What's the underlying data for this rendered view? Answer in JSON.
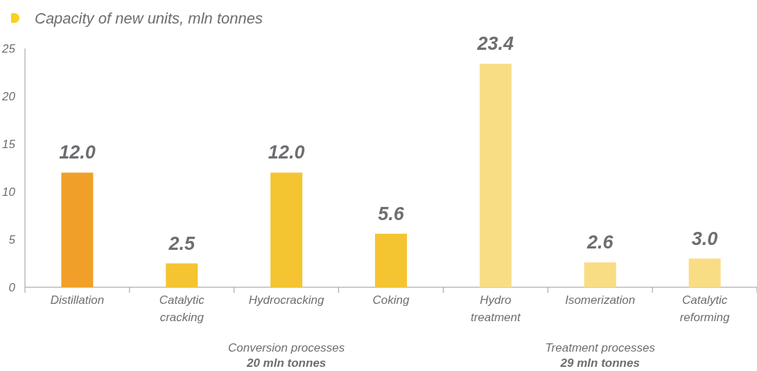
{
  "chart_data": {
    "type": "bar",
    "title": "Capacity of new units, mln tonnes",
    "categories": [
      "Distillation",
      "Catalytic cracking",
      "Hydrocracking",
      "Coking",
      "Hydro treatment",
      "Isomerization",
      "Catalytic reforming"
    ],
    "values": [
      12.0,
      2.5,
      12.0,
      5.6,
      23.4,
      2.6,
      3.0
    ],
    "value_labels": [
      "12.0",
      "2.5",
      "12.0",
      "5.6",
      "23.4",
      "2.6",
      "3.0"
    ],
    "colors": [
      "#f0a028",
      "#f5c431",
      "#f5c431",
      "#f5c431",
      "#f9dd85",
      "#f9dd85",
      "#f9dd85"
    ],
    "ylim": [
      0,
      25
    ],
    "yticks": [
      0,
      5,
      10,
      15,
      20,
      25
    ],
    "grid": false,
    "annotations": [
      "Conversion processes",
      "20 mln tonnes",
      "Treatment processes",
      "29 mln tonnes"
    ]
  }
}
